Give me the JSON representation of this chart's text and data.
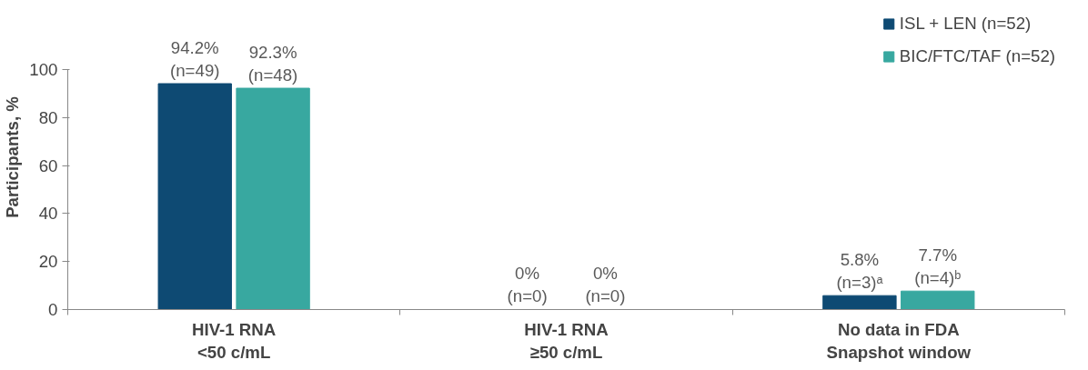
{
  "chart_data": {
    "type": "bar",
    "categories": [
      "HIV-1 RNA\n<50 c/mL",
      "HIV-1 RNA\n≥50 c/mL",
      "No data in FDA\nSnapshot window"
    ],
    "ylabel": "Participants, %",
    "ylim": [
      0,
      100
    ],
    "yticks": [
      0,
      20,
      40,
      60,
      80,
      100
    ],
    "legend": "top right",
    "series": [
      {
        "name": "ISL + LEN (n=52)",
        "color": "#0e4a73",
        "values": [
          94.2,
          0,
          5.8
        ],
        "value_labels": [
          "94.2%\n(n=49)",
          "0%\n(n=0)",
          "5.8%\n(n=3)ᵃ"
        ]
      },
      {
        "name": "BIC/FTC/TAF (n=52)",
        "color": "#38a8a0",
        "values": [
          92.3,
          0,
          7.7
        ],
        "value_labels": [
          "92.3%\n(n=48)",
          "0%\n(n=0)",
          "7.7%\n(n=4)ᵇ"
        ]
      }
    ]
  }
}
